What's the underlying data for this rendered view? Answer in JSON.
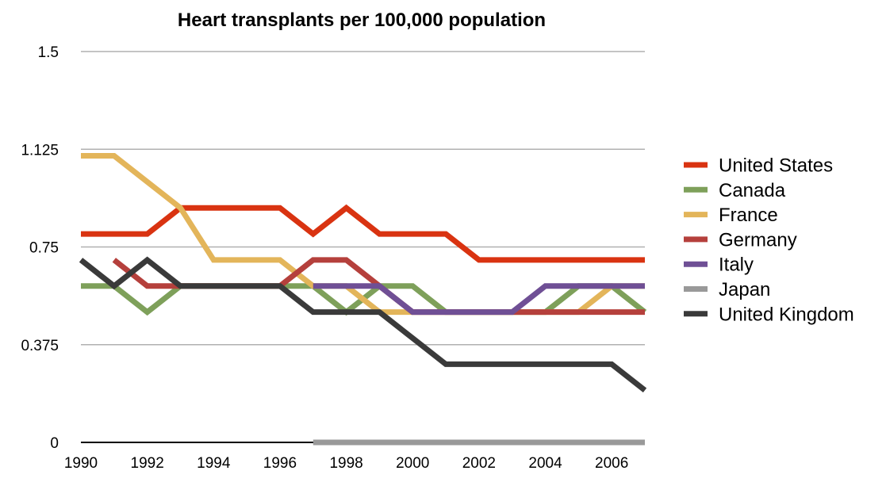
{
  "chart_data": {
    "type": "line",
    "title": "Heart transplants per 100,000 population",
    "xlabel": "",
    "ylabel": "",
    "x": [
      1990,
      1991,
      1992,
      1993,
      1994,
      1995,
      1996,
      1997,
      1998,
      1999,
      2000,
      2001,
      2002,
      2003,
      2004,
      2005,
      2006,
      2007
    ],
    "x_ticks": [
      "1990",
      "1992",
      "1994",
      "1996",
      "1998",
      "2000",
      "2002",
      "2004",
      "2006"
    ],
    "y_ticks": [
      "0",
      "0.375",
      "0.75",
      "1.125",
      "1.5"
    ],
    "ylim": [
      0,
      1.5
    ],
    "xlim": [
      1990,
      2007
    ],
    "grid": true,
    "legend_position": "right",
    "series": [
      {
        "name": "United States",
        "color": "#d93311",
        "values": [
          0.8,
          0.8,
          0.8,
          0.9,
          0.9,
          0.9,
          0.9,
          0.8,
          0.9,
          0.8,
          0.8,
          0.8,
          0.7,
          0.7,
          0.7,
          0.7,
          0.7,
          0.7
        ]
      },
      {
        "name": "Canada",
        "color": "#7ea05a",
        "values": [
          0.6,
          0.6,
          0.5,
          0.6,
          0.6,
          0.6,
          0.6,
          0.6,
          0.5,
          0.6,
          0.6,
          0.5,
          0.5,
          0.5,
          0.5,
          0.6,
          0.6,
          0.5
        ]
      },
      {
        "name": "France",
        "color": "#e3b55a",
        "values": [
          1.1,
          1.1,
          1.0,
          0.9,
          0.7,
          0.7,
          0.7,
          0.6,
          0.6,
          0.5,
          0.5,
          0.5,
          0.5,
          0.5,
          0.5,
          0.5,
          0.6,
          0.6
        ]
      },
      {
        "name": "Germany",
        "color": "#b5403c",
        "values": [
          null,
          0.7,
          0.6,
          0.6,
          0.6,
          0.6,
          0.6,
          0.7,
          0.7,
          0.6,
          0.5,
          0.5,
          0.5,
          0.5,
          0.5,
          0.5,
          0.5,
          0.5
        ]
      },
      {
        "name": "Italy",
        "color": "#6f4f95",
        "values": [
          null,
          null,
          null,
          null,
          null,
          null,
          null,
          0.6,
          0.6,
          0.6,
          0.5,
          0.5,
          0.5,
          0.5,
          0.6,
          0.6,
          0.6,
          0.6
        ]
      },
      {
        "name": "Japan",
        "color": "#999999",
        "values": [
          null,
          null,
          null,
          null,
          null,
          null,
          null,
          0.0,
          0.0,
          0.0,
          0.0,
          0.0,
          0.0,
          0.0,
          0.0,
          0.0,
          0.0,
          0.0
        ]
      },
      {
        "name": "United Kingdom",
        "color": "#3a3a3a",
        "values": [
          0.7,
          0.6,
          0.7,
          0.6,
          0.6,
          0.6,
          0.6,
          0.5,
          0.5,
          0.5,
          0.4,
          0.3,
          0.3,
          0.3,
          0.3,
          0.3,
          0.3,
          0.2
        ]
      }
    ]
  }
}
